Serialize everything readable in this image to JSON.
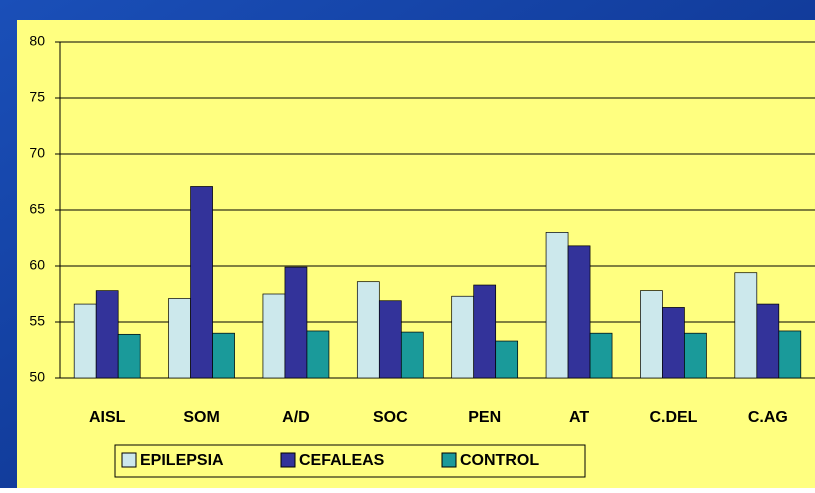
{
  "chart_data": {
    "type": "bar",
    "categories": [
      "AISL",
      "SOM",
      "A/D",
      "SOC",
      "PEN",
      "AT",
      "C.DEL",
      "C.AG"
    ],
    "series": [
      {
        "name": "EPILEPSIA",
        "color": "#cce8ec",
        "values": [
          56.6,
          57.1,
          57.5,
          58.6,
          57.3,
          63,
          57.8,
          59.4
        ]
      },
      {
        "name": "CEFALEAS",
        "color": "#33339a",
        "values": [
          57.8,
          67.1,
          59.9,
          56.9,
          58.3,
          61.8,
          56.3,
          56.6
        ]
      },
      {
        "name": "CONTROL",
        "color": "#1a9a9a",
        "values": [
          53.9,
          54,
          54.2,
          54.1,
          53.3,
          54,
          54,
          54.2
        ]
      }
    ],
    "ylim": [
      50,
      80
    ],
    "yticks": [
      50,
      55,
      60,
      65,
      70,
      75,
      80
    ],
    "grid": true,
    "legend": "bottom"
  }
}
